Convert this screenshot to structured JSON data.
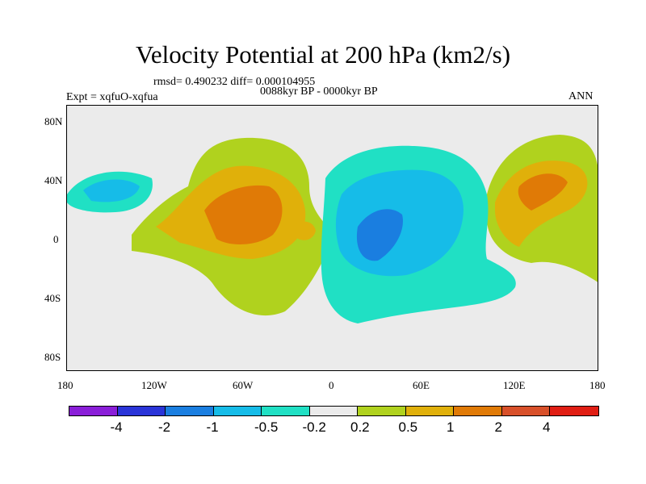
{
  "title": "Velocity Potential at 200 hPa (km2/s)",
  "stats": "rmsd= 0.490232 diff= 0.000104955",
  "experiment": "Expt = xqfuO-xqfua",
  "period": "0088kyr BP - 0000kyr BP",
  "season": "ANN",
  "lat_ticks": [
    "80N",
    "40N",
    "0",
    "40S",
    "80S"
  ],
  "lon_ticks": [
    "180",
    "120W",
    "60W",
    "0",
    "60E",
    "120E",
    "180"
  ],
  "colorbar": {
    "colors": [
      "#8a1ed8",
      "#2a34d8",
      "#1a7ee0",
      "#16bce8",
      "#20e0c4",
      "#ebebeb",
      "#b0d21e",
      "#e0b00a",
      "#e07a06",
      "#d8502a",
      "#e01e14"
    ],
    "labels": [
      "-4",
      "-2",
      "-1",
      "-0.5",
      "-0.2",
      "0.2",
      "0.5",
      "1",
      "2",
      "4"
    ]
  }
}
